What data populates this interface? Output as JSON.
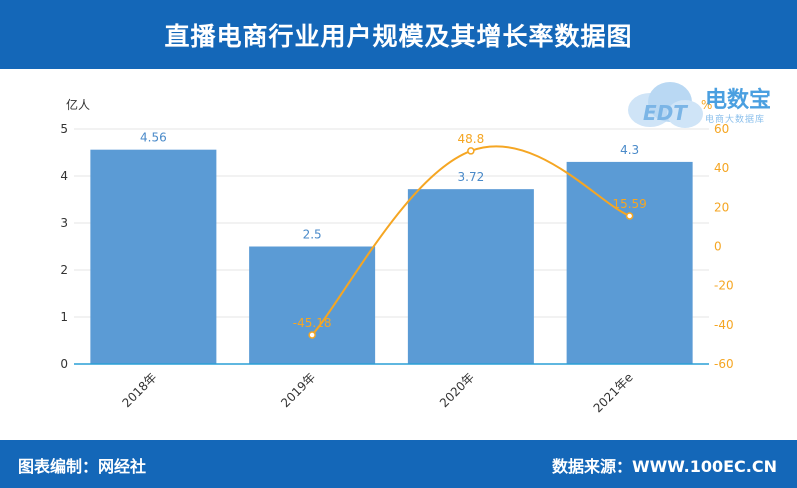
{
  "header": {
    "title": "直播电商行业用户规模及其增长率数据图"
  },
  "footer": {
    "left": "图表编制：网经社",
    "right": "数据来源：WWW.100EC.CN"
  },
  "logo": {
    "brand": "电数宝",
    "sub": "电商大数据库",
    "mark": "EDT"
  },
  "colors": {
    "header_bg": "#1467b8",
    "bar": "#5b9bd5",
    "line": "#f5a623",
    "left_label": "#4a8ac9",
    "right_axis": "#f5a623"
  },
  "chart_data": {
    "type": "bar",
    "categories": [
      "2018年",
      "2019年",
      "2020年",
      "2021年e"
    ],
    "series": [
      {
        "name": "",
        "type": "bar",
        "axis": "left",
        "values": [
          4.56,
          2.5,
          3.72,
          4.3
        ],
        "labels": [
          "4.56",
          "2.5",
          "3.72",
          "4.3"
        ]
      },
      {
        "name": "",
        "type": "line",
        "axis": "right",
        "values": [
          null,
          -45.18,
          48.8,
          15.59
        ],
        "labels": [
          "",
          "-45.18",
          "48.8",
          "15.59"
        ]
      }
    ],
    "ylabel_left": "亿人",
    "ylabel_right": "%",
    "ylim_left": [
      0,
      5
    ],
    "ylim_right": [
      -60,
      60
    ],
    "yticks_left": [
      0,
      1,
      2,
      3,
      4,
      5
    ],
    "yticks_right": [
      -60,
      -40,
      -20,
      0,
      20,
      40,
      60
    ],
    "grid": true
  }
}
